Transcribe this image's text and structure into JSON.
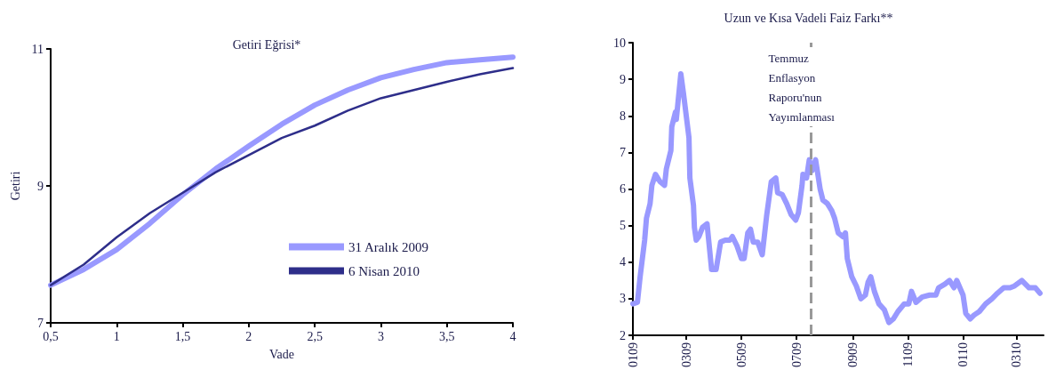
{
  "chart_data": [
    {
      "type": "line",
      "title": "Getiri Eğrisi*",
      "xlabel": "Vade",
      "ylabel": "Getiri",
      "x": [
        0.5,
        0.75,
        1.0,
        1.25,
        1.5,
        1.75,
        2.0,
        2.25,
        2.5,
        2.75,
        3.0,
        3.25,
        3.5,
        3.75,
        4.0
      ],
      "series": [
        {
          "name": "31 Aralık 2009",
          "color": "#9999ff",
          "values": [
            7.55,
            7.78,
            8.07,
            8.45,
            8.87,
            9.25,
            9.58,
            9.9,
            10.18,
            10.4,
            10.58,
            10.7,
            10.8,
            10.84,
            10.88
          ]
        },
        {
          "name": "6 Nisan 2010",
          "color": "#2e2e8a",
          "values": [
            7.55,
            7.85,
            8.25,
            8.6,
            8.9,
            9.2,
            9.45,
            9.7,
            9.88,
            10.1,
            10.28,
            10.4,
            10.52,
            10.63,
            10.72
          ]
        }
      ],
      "xlim": [
        0.5,
        4
      ],
      "xticks": [
        {
          "value": 0.5,
          "label": "0,5"
        },
        1,
        {
          "value": 1.5,
          "label": "1,5"
        },
        2,
        {
          "value": 2.5,
          "label": "2,5"
        },
        3,
        {
          "value": 3.5,
          "label": "3,5"
        },
        4
      ],
      "ylim": [
        7,
        11
      ],
      "yticks": [
        7,
        9,
        11
      ],
      "grid": false,
      "legend": "bottom right",
      "marker": "none",
      "line_style": "solid"
    },
    {
      "type": "line",
      "title": "Uzun ve Kısa Vadeli Faiz Farkı**",
      "x": [
        "2009-01-01",
        "2009-01-06",
        "2009-01-09",
        "2009-01-14",
        "2009-01-16",
        "2009-01-20",
        "2009-01-22",
        "2009-01-26",
        "2009-01-31",
        "2009-02-05",
        "2009-02-07",
        "2009-02-12",
        "2009-02-13",
        "2009-02-17",
        "2009-02-18",
        "2009-02-20",
        "2009-02-23",
        "2009-02-26",
        "2009-03-04",
        "2009-03-05",
        "2009-03-09",
        "2009-03-10",
        "2009-03-12",
        "2009-03-15",
        "2009-03-19",
        "2009-03-24",
        "2009-03-29",
        "2009-04-03",
        "2009-04-08",
        "2009-04-13",
        "2009-04-18",
        "2009-04-21",
        "2009-04-26",
        "2009-05-01",
        "2009-05-04",
        "2009-05-08",
        "2009-05-11",
        "2009-05-14",
        "2009-05-19",
        "2009-05-24",
        "2009-05-29",
        "2009-06-03",
        "2009-06-08",
        "2009-06-10",
        "2009-06-15",
        "2009-06-20",
        "2009-06-25",
        "2009-06-30",
        "2009-07-03",
        "2009-07-07",
        "2009-07-08",
        "2009-07-12",
        "2009-07-15",
        "2009-07-18",
        "2009-07-22",
        "2009-07-27",
        "2009-07-30",
        "2009-08-04",
        "2009-08-09",
        "2009-08-12",
        "2009-08-16",
        "2009-08-21",
        "2009-08-24",
        "2009-08-26",
        "2009-08-31",
        "2009-09-05",
        "2009-09-10",
        "2009-09-15",
        "2009-09-18",
        "2009-09-21",
        "2009-09-25",
        "2009-09-30",
        "2009-10-06",
        "2009-10-11",
        "2009-10-16",
        "2009-10-21",
        "2009-10-28",
        "2009-11-02",
        "2009-11-05",
        "2009-11-10",
        "2009-11-17",
        "2009-11-25",
        "2009-12-02",
        "2009-12-05",
        "2009-12-12",
        "2009-12-17",
        "2009-12-22",
        "2009-12-25",
        "2010-01-01",
        "2010-01-04",
        "2010-01-09",
        "2010-01-13",
        "2010-01-19",
        "2010-01-26",
        "2010-02-02",
        "2010-02-08",
        "2010-02-15",
        "2010-02-22",
        "2010-02-27",
        "2010-03-07",
        "2010-03-15",
        "2010-03-22",
        "2010-03-27"
      ],
      "series": [
        {
          "color": "#9999ff",
          "values": [
            2.86,
            2.9,
            3.6,
            4.6,
            5.2,
            5.6,
            6.1,
            6.4,
            6.2,
            6.1,
            6.55,
            7.05,
            7.7,
            8.1,
            7.9,
            8.4,
            9.15,
            8.6,
            7.4,
            6.3,
            5.55,
            4.95,
            4.6,
            4.7,
            4.95,
            5.05,
            3.8,
            3.8,
            4.55,
            4.6,
            4.6,
            4.7,
            4.45,
            4.1,
            4.1,
            4.8,
            4.9,
            4.55,
            4.55,
            4.2,
            5.3,
            6.2,
            6.3,
            5.9,
            5.85,
            5.6,
            5.3,
            5.15,
            5.35,
            6.1,
            6.4,
            6.3,
            6.8,
            6.5,
            6.8,
            6.0,
            5.7,
            5.6,
            5.4,
            5.2,
            4.8,
            4.7,
            4.8,
            4.1,
            3.6,
            3.35,
            3.0,
            3.1,
            3.45,
            3.6,
            3.2,
            2.86,
            2.7,
            2.35,
            2.45,
            2.65,
            2.86,
            2.86,
            3.2,
            2.9,
            3.05,
            3.1,
            3.1,
            3.3,
            3.4,
            3.5,
            3.3,
            3.5,
            3.1,
            2.6,
            2.45,
            2.55,
            2.65,
            2.86,
            3.0,
            3.15,
            3.3,
            3.3,
            3.35,
            3.5,
            3.3,
            3.3,
            3.15
          ]
        }
      ],
      "xlim": [
        "2009-01-01",
        "2010-03-31"
      ],
      "xticks": [
        {
          "value": "2009-01-01",
          "label": "0109"
        },
        {
          "value": "2009-03-01",
          "label": "0309"
        },
        {
          "value": "2009-05-01",
          "label": "0509"
        },
        {
          "value": "2009-07-01",
          "label": "0709"
        },
        {
          "value": "2009-09-01",
          "label": "0909"
        },
        {
          "value": "2009-11-01",
          "label": "1109"
        },
        {
          "value": "2010-01-01",
          "label": "0110"
        },
        {
          "value": "2010-03-01",
          "label": "0310"
        }
      ],
      "ylim": [
        2,
        10
      ],
      "yticks": [
        2,
        3,
        4,
        5,
        6,
        7,
        8,
        9,
        10
      ],
      "grid": false,
      "legend": false,
      "marker": "none",
      "line_style": "solid",
      "ref_lines": [
        {
          "axis": "x",
          "value": "2009-07-17",
          "label": "Temmuz\nEnflasyon\nRaporu'nun\nYayımlanması",
          "color": "#999999",
          "line_style": "dashed"
        }
      ]
    }
  ]
}
